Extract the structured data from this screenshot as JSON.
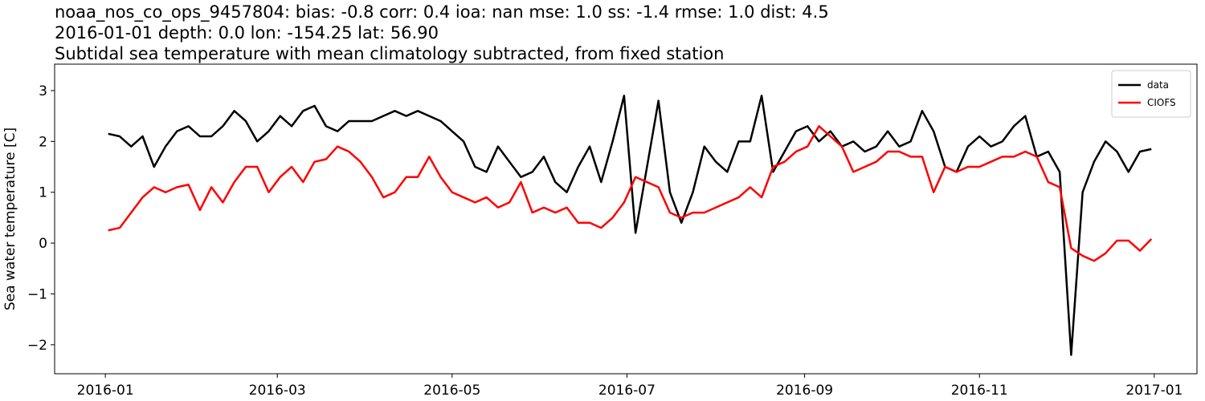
{
  "chart_data": {
    "type": "line",
    "title_lines": [
      "noaa_nos_co_ops_9457804: bias: -0.8  corr: 0.4  ioa: nan  mse: 1.0  ss: -1.4  rmse: 1.0  dist: 4.5",
      "2016-01-01 depth: 0.0 lon: -154.25 lat: 56.90",
      "Subtidal sea temperature with mean climatology subtracted, from fixed station"
    ],
    "y_label": "Sea water temperature [C]",
    "x": [
      1,
      5,
      9,
      13,
      17,
      21,
      25,
      29,
      33,
      37,
      41,
      45,
      49,
      53,
      57,
      61,
      65,
      69,
      73,
      77,
      81,
      85,
      89,
      93,
      97,
      101,
      105,
      109,
      113,
      117,
      121,
      125,
      129,
      133,
      137,
      141,
      145,
      149,
      153,
      157,
      161,
      165,
      169,
      173,
      177,
      181,
      185,
      189,
      193,
      197,
      201,
      205,
      209,
      213,
      217,
      221,
      225,
      229,
      233,
      237,
      241,
      245,
      249,
      253,
      257,
      261,
      265,
      269,
      273,
      277,
      281,
      285,
      289,
      293,
      297,
      301,
      305,
      309,
      313,
      317,
      321,
      325,
      329,
      333,
      337,
      341,
      345,
      349,
      353,
      357,
      361,
      365
    ],
    "series": [
      {
        "name": "data",
        "color": "#000000",
        "values": [
          2.15,
          2.1,
          1.9,
          2.1,
          1.5,
          1.9,
          2.2,
          2.3,
          2.1,
          2.1,
          2.3,
          2.6,
          2.4,
          2.0,
          2.2,
          2.5,
          2.3,
          2.6,
          2.7,
          2.3,
          2.2,
          2.4,
          2.4,
          2.4,
          2.5,
          2.6,
          2.5,
          2.6,
          2.5,
          2.4,
          2.2,
          2.0,
          1.5,
          1.4,
          1.9,
          1.6,
          1.3,
          1.4,
          1.7,
          1.2,
          1.0,
          1.5,
          1.9,
          1.2,
          2.0,
          2.9,
          0.2,
          1.5,
          2.8,
          1.0,
          0.4,
          1.0,
          1.9,
          1.6,
          1.4,
          2.0,
          2.0,
          2.9,
          1.4,
          1.8,
          2.2,
          2.3,
          2.0,
          2.2,
          1.9,
          2.0,
          1.8,
          1.9,
          2.2,
          1.9,
          2.0,
          2.6,
          2.2,
          1.5,
          1.4,
          1.9,
          2.1,
          1.9,
          2.0,
          2.3,
          2.5,
          1.7,
          1.8,
          1.4,
          -2.2,
          1.0,
          1.6,
          2.0,
          1.8,
          1.4,
          1.8,
          1.85
        ]
      },
      {
        "name": "CIOFS",
        "color": "#ff0000",
        "values": [
          0.25,
          0.3,
          0.6,
          0.9,
          1.1,
          1.0,
          1.1,
          1.15,
          0.65,
          1.1,
          0.8,
          1.2,
          1.5,
          1.5,
          1.0,
          1.3,
          1.5,
          1.2,
          1.6,
          1.65,
          1.9,
          1.8,
          1.6,
          1.3,
          0.9,
          1.0,
          1.3,
          1.3,
          1.7,
          1.3,
          1.0,
          0.9,
          0.8,
          0.9,
          0.7,
          0.8,
          1.2,
          0.6,
          0.7,
          0.6,
          0.7,
          0.4,
          0.4,
          0.3,
          0.5,
          0.8,
          1.3,
          1.2,
          1.1,
          0.6,
          0.5,
          0.6,
          0.6,
          0.7,
          0.8,
          0.9,
          1.1,
          0.9,
          1.5,
          1.6,
          1.8,
          1.9,
          2.3,
          2.1,
          1.9,
          1.4,
          1.5,
          1.6,
          1.8,
          1.8,
          1.7,
          1.7,
          1.0,
          1.5,
          1.4,
          1.5,
          1.5,
          1.6,
          1.7,
          1.7,
          1.8,
          1.7,
          1.2,
          1.1,
          -0.1,
          -0.25,
          -0.35,
          -0.2,
          0.05,
          0.05,
          -0.15,
          0.08
        ]
      }
    ],
    "xlim": [
      -17.7,
      380.9
    ],
    "xticks": [
      {
        "value": 0,
        "label": "2016-01"
      },
      {
        "value": 60,
        "label": "2016-03"
      },
      {
        "value": 121,
        "label": "2016-05"
      },
      {
        "value": 182,
        "label": "2016-07"
      },
      {
        "value": 244,
        "label": "2016-09"
      },
      {
        "value": 305,
        "label": "2016-11"
      },
      {
        "value": 366,
        "label": "2017-01"
      }
    ],
    "ylim": [
      -2.57,
      3.52
    ],
    "yticks": [
      {
        "value": -2,
        "label": "−2"
      },
      {
        "value": -1,
        "label": "−1"
      },
      0,
      1,
      2,
      3
    ],
    "legend": "upper right",
    "grid": false
  }
}
